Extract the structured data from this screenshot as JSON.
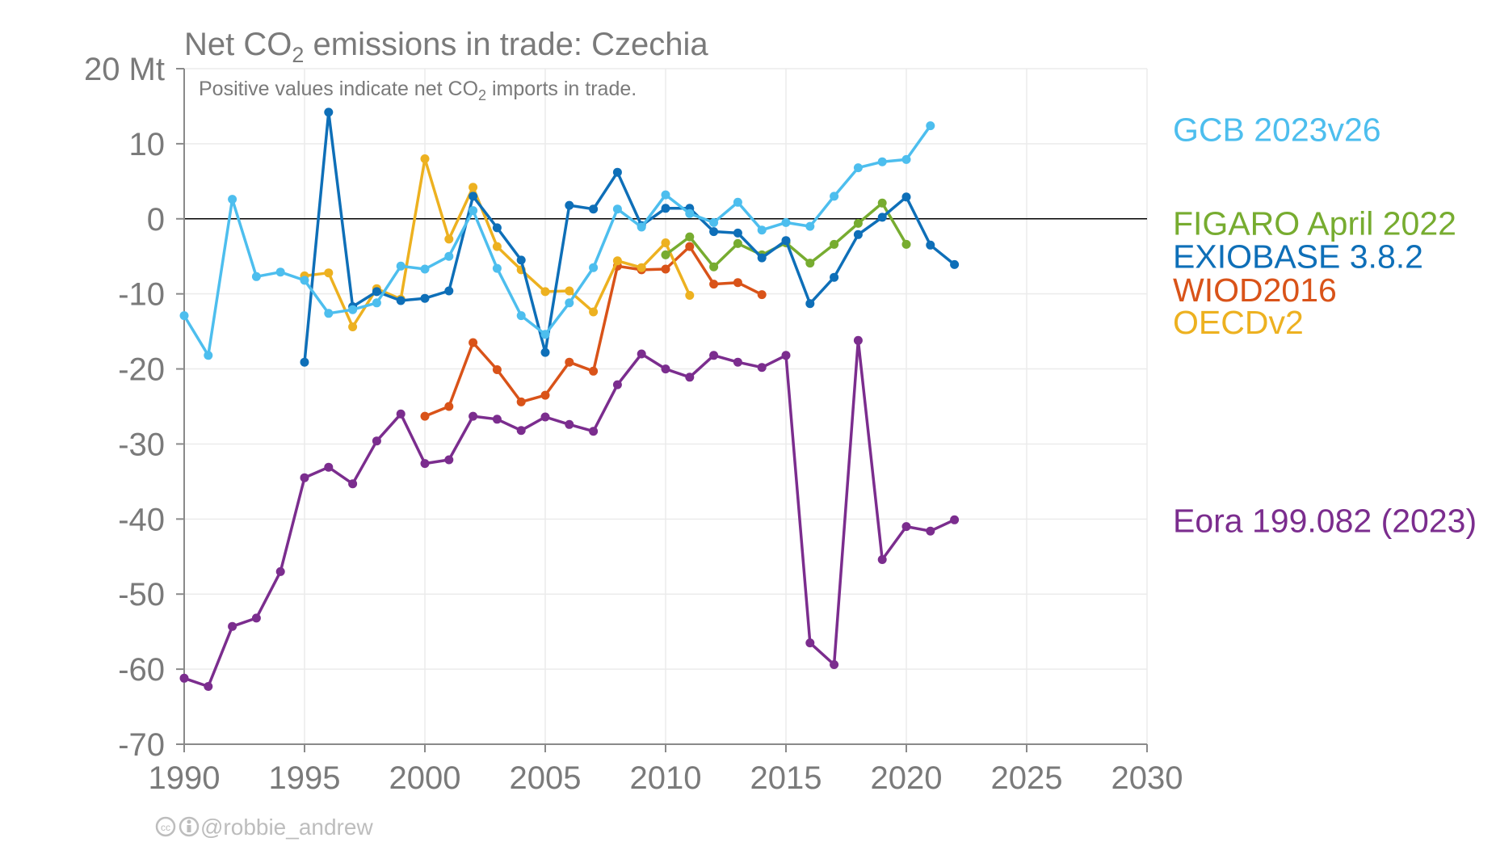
{
  "chart_data": {
    "type": "line",
    "title_parts": {
      "before": "Net CO",
      "sub": "2",
      "after": " emissions in trade: Czechia"
    },
    "subtitle_parts": {
      "before": "Positive values indicate net CO",
      "sub": "2",
      "after": " imports in trade."
    },
    "credit": "@robbie_andrew",
    "xlim": [
      1990,
      2030
    ],
    "ylim": [
      -70,
      20
    ],
    "x_ticks": [
      1990,
      1995,
      2000,
      2005,
      2010,
      2015,
      2020,
      2025,
      2030
    ],
    "y_ticks": [
      {
        "value": 20,
        "label": "20 Mt"
      },
      {
        "value": 10,
        "label": "10"
      },
      {
        "value": 0,
        "label": "0"
      },
      {
        "value": -10,
        "label": "-10"
      },
      {
        "value": -20,
        "label": "-20"
      },
      {
        "value": -30,
        "label": "-30"
      },
      {
        "value": -40,
        "label": "-40"
      },
      {
        "value": -50,
        "label": "-50"
      },
      {
        "value": -60,
        "label": "-60"
      },
      {
        "value": -70,
        "label": "-70"
      }
    ],
    "grid": true,
    "legend": "right",
    "series": [
      {
        "name": "Eora 199.082 (2023)",
        "color": "#7b2d8e",
        "x": [
          1990,
          1991,
          1992,
          1993,
          1994,
          1995,
          1996,
          1997,
          1998,
          1999,
          2000,
          2001,
          2002,
          2003,
          2004,
          2005,
          2006,
          2007,
          2008,
          2009,
          2010,
          2011,
          2012,
          2013,
          2014,
          2015,
          2016,
          2017,
          2018,
          2019,
          2020,
          2021,
          2022
        ],
        "y": [
          -61.2,
          -62.3,
          -54.3,
          -53.2,
          -47,
          -34.5,
          -33.1,
          -35.3,
          -29.6,
          -26,
          -32.6,
          -32.1,
          -26.3,
          -26.7,
          -28.2,
          -26.4,
          -27.4,
          -28.3,
          -22.1,
          -18,
          -20,
          -21.1,
          -18.2,
          -19.1,
          -19.8,
          -18.2,
          -56.5,
          -59.4,
          -16.2,
          -45.4,
          -41,
          -41.6,
          -40.1
        ]
      },
      {
        "name": "WIOD2016",
        "color": "#d95319",
        "x": [
          2000,
          2001,
          2002,
          2003,
          2004,
          2005,
          2006,
          2007,
          2008,
          2009,
          2010,
          2011,
          2012,
          2013,
          2014
        ],
        "y": [
          -26.3,
          -25,
          -16.5,
          -20.1,
          -24.4,
          -23.5,
          -19.1,
          -20.3,
          -6.3,
          -6.8,
          -6.7,
          -3.7,
          -8.7,
          -8.5,
          -10.1
        ]
      },
      {
        "name": "OECDv2",
        "color": "#edb120",
        "x": [
          1995,
          1996,
          1997,
          1998,
          1999,
          2000,
          2001,
          2002,
          2003,
          2004,
          2005,
          2006,
          2007,
          2008,
          2009,
          2010,
          2011
        ],
        "y": [
          -7.6,
          -7.2,
          -14.4,
          -9.3,
          -10.7,
          8,
          -2.7,
          4.2,
          -3.7,
          -6.8,
          -9.7,
          -9.6,
          -12.4,
          -5.6,
          -6.5,
          -3.2,
          -10.2
        ]
      },
      {
        "name": "FIGARO April 2022",
        "color": "#77ac30",
        "x": [
          2010,
          2011,
          2012,
          2013,
          2014,
          2015,
          2016,
          2017,
          2018,
          2019,
          2020
        ],
        "y": [
          -4.8,
          -2.4,
          -6.4,
          -3.3,
          -4.8,
          -3.2,
          -5.9,
          -3.4,
          -0.6,
          2.1,
          -3.4
        ]
      },
      {
        "name": "EXIOBASE 3.8.2",
        "color": "#0e6fb8",
        "x": [
          1995,
          1996,
          1997,
          1998,
          1999,
          2000,
          2001,
          2002,
          2003,
          2004,
          2005,
          2006,
          2007,
          2008,
          2009,
          2010,
          2011,
          2012,
          2013,
          2014,
          2015,
          2016,
          2017,
          2018,
          2019,
          2020,
          2021,
          2022
        ],
        "y": [
          -19.1,
          14.2,
          -11.7,
          -9.7,
          -10.9,
          -10.6,
          -9.6,
          3,
          -1.2,
          -5.5,
          -17.8,
          1.8,
          1.3,
          6.2,
          -0.9,
          1.4,
          1.4,
          -1.7,
          -1.9,
          -5.2,
          -2.9,
          -11.3,
          -7.8,
          -2.1,
          0.2,
          2.9,
          -3.5,
          -6.1
        ]
      },
      {
        "name": "GCB 2023v26",
        "color": "#4dbeee",
        "x": [
          1990,
          1991,
          1992,
          1993,
          1994,
          1995,
          1996,
          1997,
          1998,
          1999,
          2000,
          2001,
          2002,
          2003,
          2004,
          2005,
          2006,
          2007,
          2008,
          2009,
          2010,
          2011,
          2012,
          2013,
          2014,
          2015,
          2016,
          2017,
          2018,
          2019,
          2020,
          2021
        ],
        "y": [
          -12.9,
          -18.2,
          2.6,
          -7.7,
          -7.1,
          -8.2,
          -12.6,
          -12.1,
          -11.2,
          -6.3,
          -6.7,
          -5,
          1.1,
          -6.6,
          -12.9,
          -15.4,
          -11.2,
          -6.5,
          1.3,
          -1.1,
          3.2,
          0.7,
          -0.5,
          2.2,
          -1.5,
          -0.5,
          -1,
          3,
          6.8,
          7.6,
          7.9,
          12.4
        ]
      }
    ],
    "legend_entries": [
      {
        "name": "GCB 2023v26",
        "color": "#4dbeee",
        "y": 12
      },
      {
        "name": "FIGARO April 2022",
        "color": "#77ac30",
        "y": -0.5
      },
      {
        "name": "EXIOBASE 3.8.2",
        "color": "#0e6fb8",
        "y": -4.9
      },
      {
        "name": "WIOD2016",
        "color": "#d95319",
        "y": -9.4
      },
      {
        "name": "OECDv2",
        "color": "#edb120",
        "y": -13.7
      },
      {
        "name": "Eora 199.082 (2023)",
        "color": "#7b2d8e",
        "y": -40.1
      }
    ]
  }
}
